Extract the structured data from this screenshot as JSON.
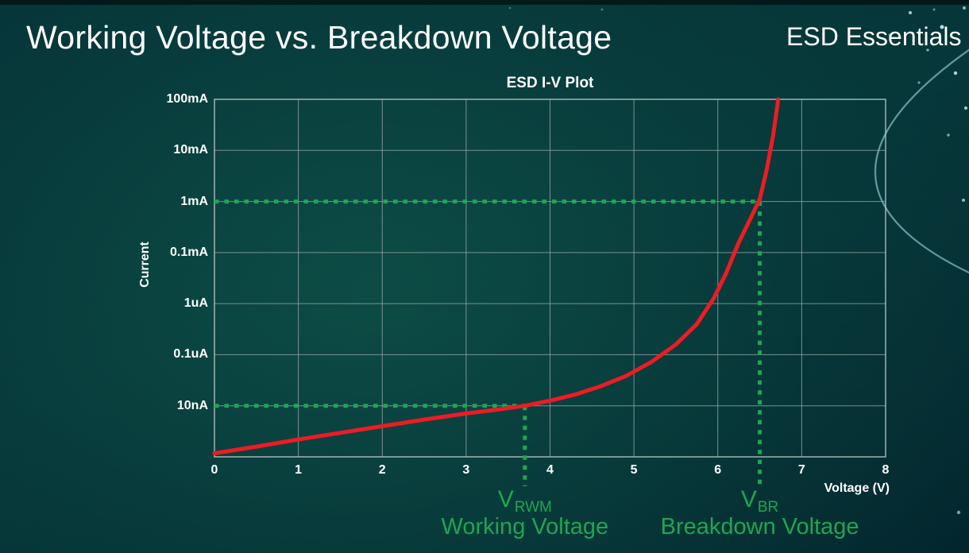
{
  "slide": {
    "title": "Working Voltage vs. Breakdown Voltage",
    "brand": "ESD Essentials"
  },
  "chart_data": {
    "type": "line",
    "title": "ESD I-V Plot",
    "xlabel": "Voltage (V)",
    "ylabel": "Current",
    "x_range": [
      0,
      8
    ],
    "x_ticks": [
      0,
      1,
      2,
      3,
      4,
      5,
      6,
      7,
      8
    ],
    "y_scale": "log",
    "y_level_range": [
      0,
      7
    ],
    "y_ticks": [
      {
        "label": "100mA",
        "level": 7
      },
      {
        "label": "10mA",
        "level": 6
      },
      {
        "label": "1mA",
        "level": 5
      },
      {
        "label": "0.1mA",
        "level": 4
      },
      {
        "label": "1uA",
        "level": 3
      },
      {
        "label": "0.1uA",
        "level": 2
      },
      {
        "label": "10nA",
        "level": 1
      }
    ],
    "grid": true,
    "series": [
      {
        "name": "ESD I-V curve",
        "color": "#ee1b24",
        "points": [
          [
            0,
            0.07
          ],
          [
            0.5,
            0.2
          ],
          [
            1,
            0.34
          ],
          [
            1.5,
            0.47
          ],
          [
            2,
            0.6
          ],
          [
            2.5,
            0.73
          ],
          [
            3,
            0.85
          ],
          [
            3.4,
            0.93
          ],
          [
            3.7,
            1.0
          ],
          [
            4.0,
            1.1
          ],
          [
            4.3,
            1.22
          ],
          [
            4.6,
            1.38
          ],
          [
            4.9,
            1.58
          ],
          [
            5.2,
            1.85
          ],
          [
            5.5,
            2.2
          ],
          [
            5.75,
            2.6
          ],
          [
            5.95,
            3.1
          ],
          [
            6.1,
            3.6
          ],
          [
            6.25,
            4.2
          ],
          [
            6.4,
            4.7
          ],
          [
            6.5,
            5.05
          ],
          [
            6.58,
            5.6
          ],
          [
            6.66,
            6.3
          ],
          [
            6.72,
            7.0
          ]
        ]
      }
    ],
    "annotations": [
      {
        "id": "vrwm",
        "prefix": "V",
        "sub": "RWM",
        "caption": "Working Voltage",
        "voltage": 3.7,
        "level": 1,
        "color": "#1fa651"
      },
      {
        "id": "vbr",
        "prefix": "V",
        "sub": "BR",
        "caption": "Breakdown Voltage",
        "voltage": 6.5,
        "level": 5,
        "color": "#1fa651"
      }
    ],
    "colors": {
      "grid": "#97a3a6",
      "plot_border": "#c4cccc",
      "curve": "#ee1b24",
      "annotation_green": "#1fa651",
      "text": "#ffffff"
    }
  }
}
